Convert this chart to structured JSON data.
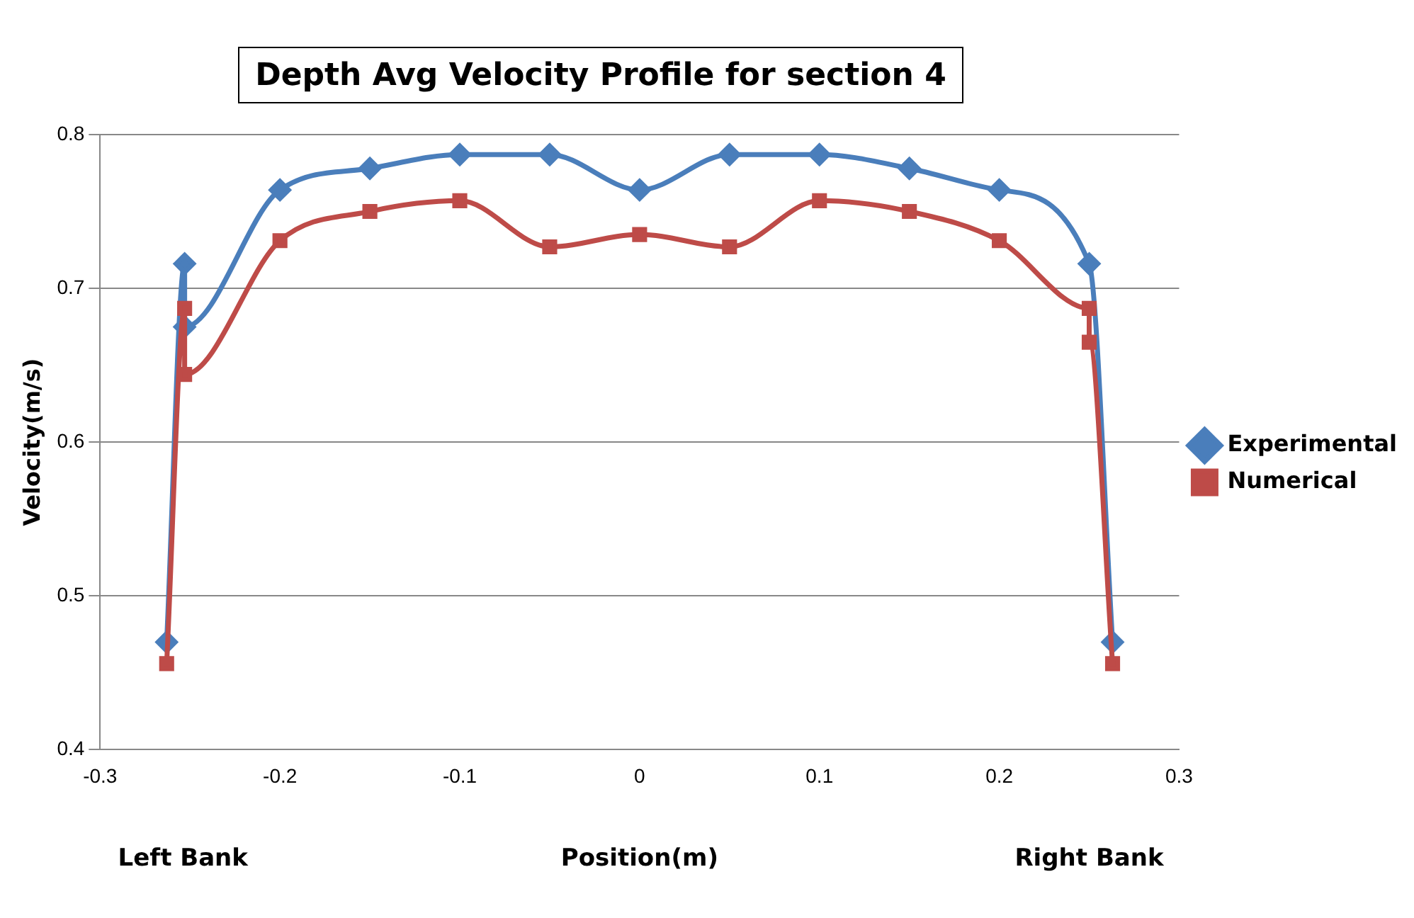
{
  "chart_data": {
    "type": "line",
    "title": "Depth Avg Velocity Profile for section 4",
    "xlabel": "Position(m)",
    "ylabel": "Velocity(m/s)",
    "annotations": [
      "Left Bank",
      "Right Bank"
    ],
    "xlim": [
      -0.3,
      0.3
    ],
    "xticks": [
      -0.3,
      -0.2,
      -0.1,
      0,
      0.1,
      0.2,
      0.3
    ],
    "ylim": [
      0.4,
      0.8
    ],
    "yticks": [
      0.4,
      0.5,
      0.6,
      0.7,
      0.8
    ],
    "grid": "y",
    "legend": "right",
    "line_style": "solid",
    "series": [
      {
        "name": "Experimental",
        "color": "#4a7ebb",
        "marker": "diamond",
        "x": [
          -0.263,
          -0.253,
          -0.253,
          -0.2,
          -0.15,
          -0.1,
          -0.05,
          0,
          0.05,
          0.1,
          0.15,
          0.2,
          0.25,
          0.263
        ],
        "values": [
          0.47,
          0.716,
          0.675,
          0.764,
          0.778,
          0.787,
          0.787,
          0.764,
          0.787,
          0.787,
          0.778,
          0.764,
          0.716,
          0.47
        ]
      },
      {
        "name": "Numerical",
        "color": "#be4b48",
        "marker": "square",
        "x": [
          -0.263,
          -0.253,
          -0.253,
          -0.2,
          -0.15,
          -0.1,
          -0.05,
          0,
          0.05,
          0.1,
          0.15,
          0.2,
          0.25,
          0.25,
          0.263
        ],
        "values": [
          0.456,
          0.687,
          0.644,
          0.731,
          0.75,
          0.757,
          0.727,
          0.735,
          0.727,
          0.757,
          0.75,
          0.731,
          0.687,
          0.665,
          0.456
        ]
      }
    ]
  }
}
